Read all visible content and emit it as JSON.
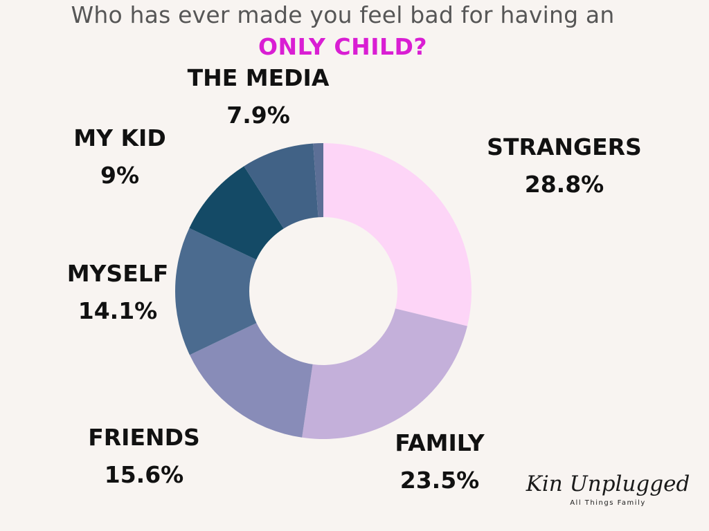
{
  "title": {
    "line1": "Who has ever made you feel bad for having an",
    "line2": "ONLY CHILD?"
  },
  "chart_data": {
    "type": "pie",
    "donut": true,
    "unit": "%",
    "slices": [
      {
        "label": "STRANGERS",
        "value": 28.8,
        "display": "28.8%",
        "color": "#fdd5f7"
      },
      {
        "label": "FAMILY",
        "value": 23.5,
        "display": "23.5%",
        "color": "#c4b0da"
      },
      {
        "label": "FRIENDS",
        "value": 15.6,
        "display": "15.6%",
        "color": "#888cb8"
      },
      {
        "label": "MYSELF",
        "value": 14.1,
        "display": "14.1%",
        "color": "#4b6b8f"
      },
      {
        "label": "MY KID",
        "value": 9,
        "display": "9%",
        "color": "#144a66"
      },
      {
        "label": "THE MEDIA",
        "value": 7.9,
        "display": "7.9%",
        "color": "#416286"
      },
      {
        "label": "",
        "value": 1.1,
        "display": "",
        "color": "#5c6f96"
      }
    ]
  },
  "brand": {
    "name": "Kin Unplugged",
    "tagline": "All Things Family"
  }
}
